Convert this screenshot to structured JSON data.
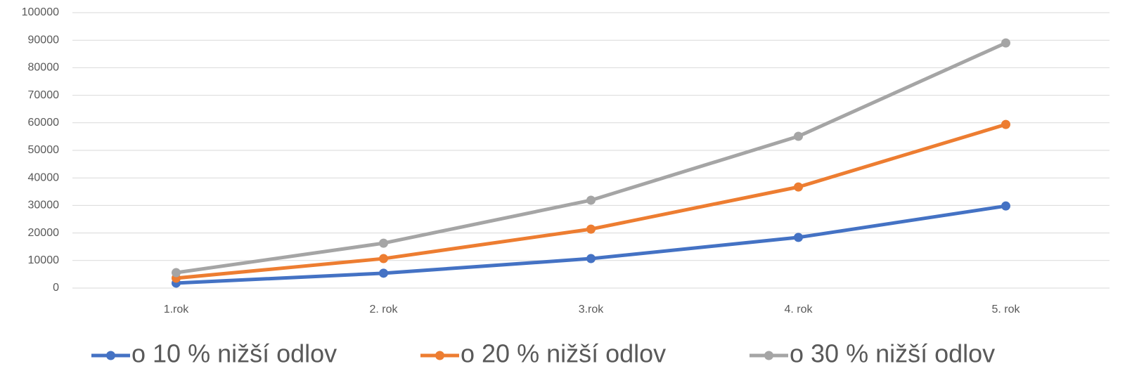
{
  "chart_data": {
    "type": "line",
    "categories": [
      "1.rok",
      "2. rok",
      "3.rok",
      "4. rok",
      "5. rok"
    ],
    "series": [
      {
        "name": "o 10 % nižší odlov",
        "color": "#4472c4",
        "values": [
          1800,
          5400,
          10700,
          18400,
          29800
        ]
      },
      {
        "name": "o 20 % nižší odlov",
        "color": "#ed7d31",
        "values": [
          3600,
          10700,
          21400,
          36700,
          59400
        ]
      },
      {
        "name": "o 30 % nižší odlov",
        "color": "#a5a5a5",
        "values": [
          5600,
          16300,
          31900,
          55100,
          89000
        ]
      }
    ],
    "ylim": [
      0,
      100000
    ],
    "yticks": [
      0,
      10000,
      20000,
      30000,
      40000,
      50000,
      60000,
      70000,
      80000,
      90000,
      100000
    ],
    "grid": true,
    "legend": "bottom"
  }
}
